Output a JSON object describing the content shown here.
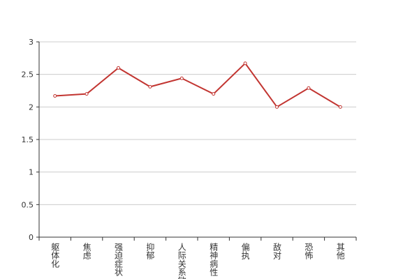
{
  "chart_data": {
    "type": "line",
    "categories": [
      "躯体化",
      "焦虑",
      "强迫症状",
      "抑郁",
      "人际关系敏感",
      "精神病性",
      "偏执",
      "敌对",
      "恐怖",
      "其他"
    ],
    "values": [
      2.17,
      2.2,
      2.6,
      2.31,
      2.44,
      2.2,
      2.67,
      2.0,
      2.29,
      2.0
    ],
    "color": "#c23531",
    "ylim": [
      0,
      3
    ],
    "yticks": [
      0,
      0.5,
      1,
      1.5,
      2,
      2.5,
      3
    ],
    "grid": true
  }
}
